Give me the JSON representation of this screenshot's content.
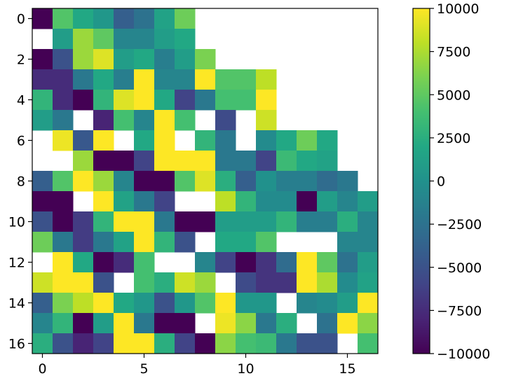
{
  "chart_data": {
    "type": "heatmap",
    "title": "",
    "xlabel": "",
    "ylabel": "",
    "x_ticks": [
      "0",
      "5",
      "10",
      "15"
    ],
    "y_ticks": [
      "0",
      "2",
      "4",
      "6",
      "8",
      "10",
      "12",
      "14",
      "16"
    ],
    "xlim": [
      -0.5,
      16.5
    ],
    "ylim": [
      16.5,
      -0.5
    ],
    "colormap": "viridis",
    "colorbar": {
      "vmin": -10000,
      "vmax": 10000,
      "ticks": [
        "10000",
        "7500",
        "5000",
        "2500",
        "0",
        "−2500",
        "−5000",
        "−7500",
        "−10000"
      ]
    },
    "note": "null cells are blank (NaN)",
    "values": [
      [
        -10000,
        4500,
        2000,
        500,
        -4000,
        -2500,
        1500,
        5500,
        null,
        null,
        null,
        null,
        null,
        null,
        null,
        null,
        null
      ],
      [
        null,
        1000,
        7000,
        5000,
        -1000,
        -1000,
        1000,
        2000,
        null,
        null,
        null,
        null,
        null,
        null,
        null,
        null,
        null
      ],
      [
        -10000,
        -5000,
        7000,
        9000,
        1000,
        2000,
        -1500,
        1000,
        6000,
        null,
        null,
        null,
        null,
        null,
        null,
        null,
        null
      ],
      [
        -7500,
        -7500,
        -2000,
        2000,
        -1500,
        10000,
        -1000,
        -1000,
        10000,
        4500,
        4500,
        8000,
        null,
        null,
        null,
        null,
        null
      ],
      [
        3000,
        -7500,
        -10000,
        3000,
        9000,
        10000,
        2000,
        -6000,
        -2000,
        4000,
        4000,
        10000,
        null,
        null,
        null,
        null,
        null
      ],
      [
        1000,
        -2000,
        null,
        -8000,
        4000,
        -1000,
        10000,
        4000,
        null,
        -5500,
        null,
        8500,
        null,
        null,
        null,
        null,
        null
      ],
      [
        null,
        9500,
        -4500,
        10000,
        null,
        2000,
        10000,
        null,
        3000,
        -2000,
        null,
        -500,
        2000,
        5500,
        2000,
        null,
        null
      ],
      [
        null,
        null,
        7000,
        -10000,
        -10000,
        -6000,
        10000,
        10000,
        10000,
        -2000,
        -2000,
        -6000,
        3500,
        2000,
        1500,
        null,
        null
      ],
      [
        -4000,
        4500,
        10000,
        7000,
        -1000,
        -10000,
        -10000,
        4500,
        9000,
        2500,
        -4000,
        0,
        -1500,
        -1500,
        -3000,
        -2000,
        null
      ],
      [
        -10000,
        -10000,
        null,
        10000,
        1500,
        -2000,
        -6000,
        null,
        null,
        8000,
        3000,
        -500,
        -500,
        -10000,
        1000,
        -1000,
        1000
      ],
      [
        -5000,
        -10000,
        -6500,
        3000,
        10000,
        10000,
        -2000,
        -10000,
        -10000,
        1000,
        1000,
        1000,
        3000,
        -1500,
        -1500,
        2500,
        -1000
      ],
      [
        5500,
        -2000,
        -6500,
        -2000,
        1500,
        10000,
        3000,
        -5000,
        null,
        2000,
        2000,
        4500,
        null,
        null,
        null,
        -1000,
        -1000
      ],
      [
        null,
        10000,
        2000,
        -10000,
        -7500,
        4000,
        null,
        null,
        -1000,
        -6000,
        -10000,
        -7000,
        -3000,
        10000,
        5000,
        -2500,
        1000
      ],
      [
        8500,
        10000,
        10000,
        -5000,
        null,
        4000,
        2500,
        8500,
        7000,
        null,
        -5500,
        -7000,
        -7000,
        10000,
        7500,
        -500,
        1500
      ],
      [
        -4000,
        6000,
        8000,
        10000,
        2000,
        500,
        -5000,
        500,
        4500,
        10000,
        500,
        500,
        null,
        -1000,
        -500,
        1000,
        10000
      ],
      [
        -1000,
        3000,
        -10000,
        1000,
        10000,
        -2000,
        -10000,
        -10000,
        null,
        9500,
        6500,
        -2000,
        2500,
        null,
        -2500,
        10000,
        6500
      ],
      [
        2500,
        -5000,
        -8000,
        -6000,
        10000,
        10000,
        2500,
        -6000,
        -10000,
        6500,
        4000,
        3500,
        -2000,
        -5000,
        -5000,
        null,
        4000
      ]
    ]
  }
}
